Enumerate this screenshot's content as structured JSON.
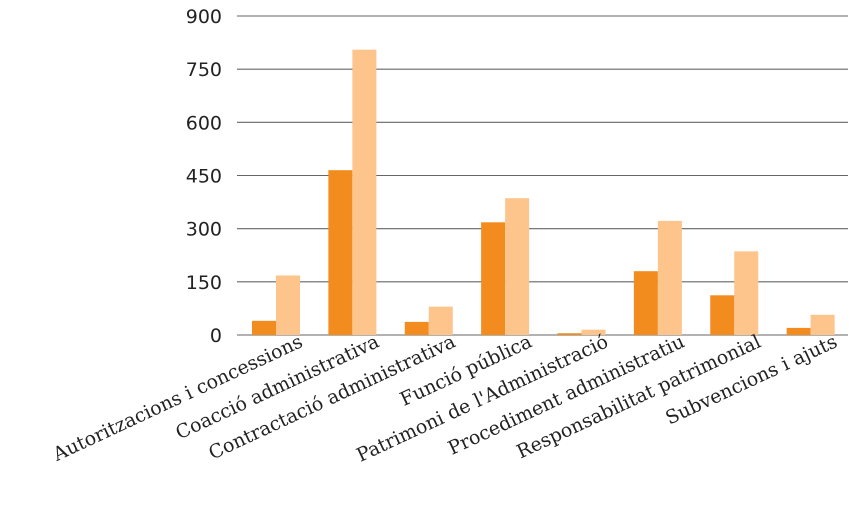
{
  "chart_data": {
    "type": "bar",
    "categories": [
      "Autoritzacions i concessions",
      "Coacció administrativa",
      "Contractació administrativa",
      "Funció pública",
      "Patrimoni de l'Administració",
      "Procediment administratiu",
      "Responsabilitat patrimonial",
      "Subvencions i ajuts"
    ],
    "series": [
      {
        "values": [
          40,
          465,
          37,
          318,
          5,
          180,
          112,
          20
        ],
        "color": "#f28c1e"
      },
      {
        "values": [
          168,
          805,
          80,
          386,
          15,
          322,
          236,
          57
        ],
        "color": "#fdc48c"
      }
    ],
    "yticks": [
      0,
      150,
      300,
      450,
      600,
      750,
      900
    ],
    "ylim": [
      0,
      900
    ],
    "grid": true,
    "legend": "none",
    "title": "",
    "xlabel": "",
    "ylabel": ""
  }
}
